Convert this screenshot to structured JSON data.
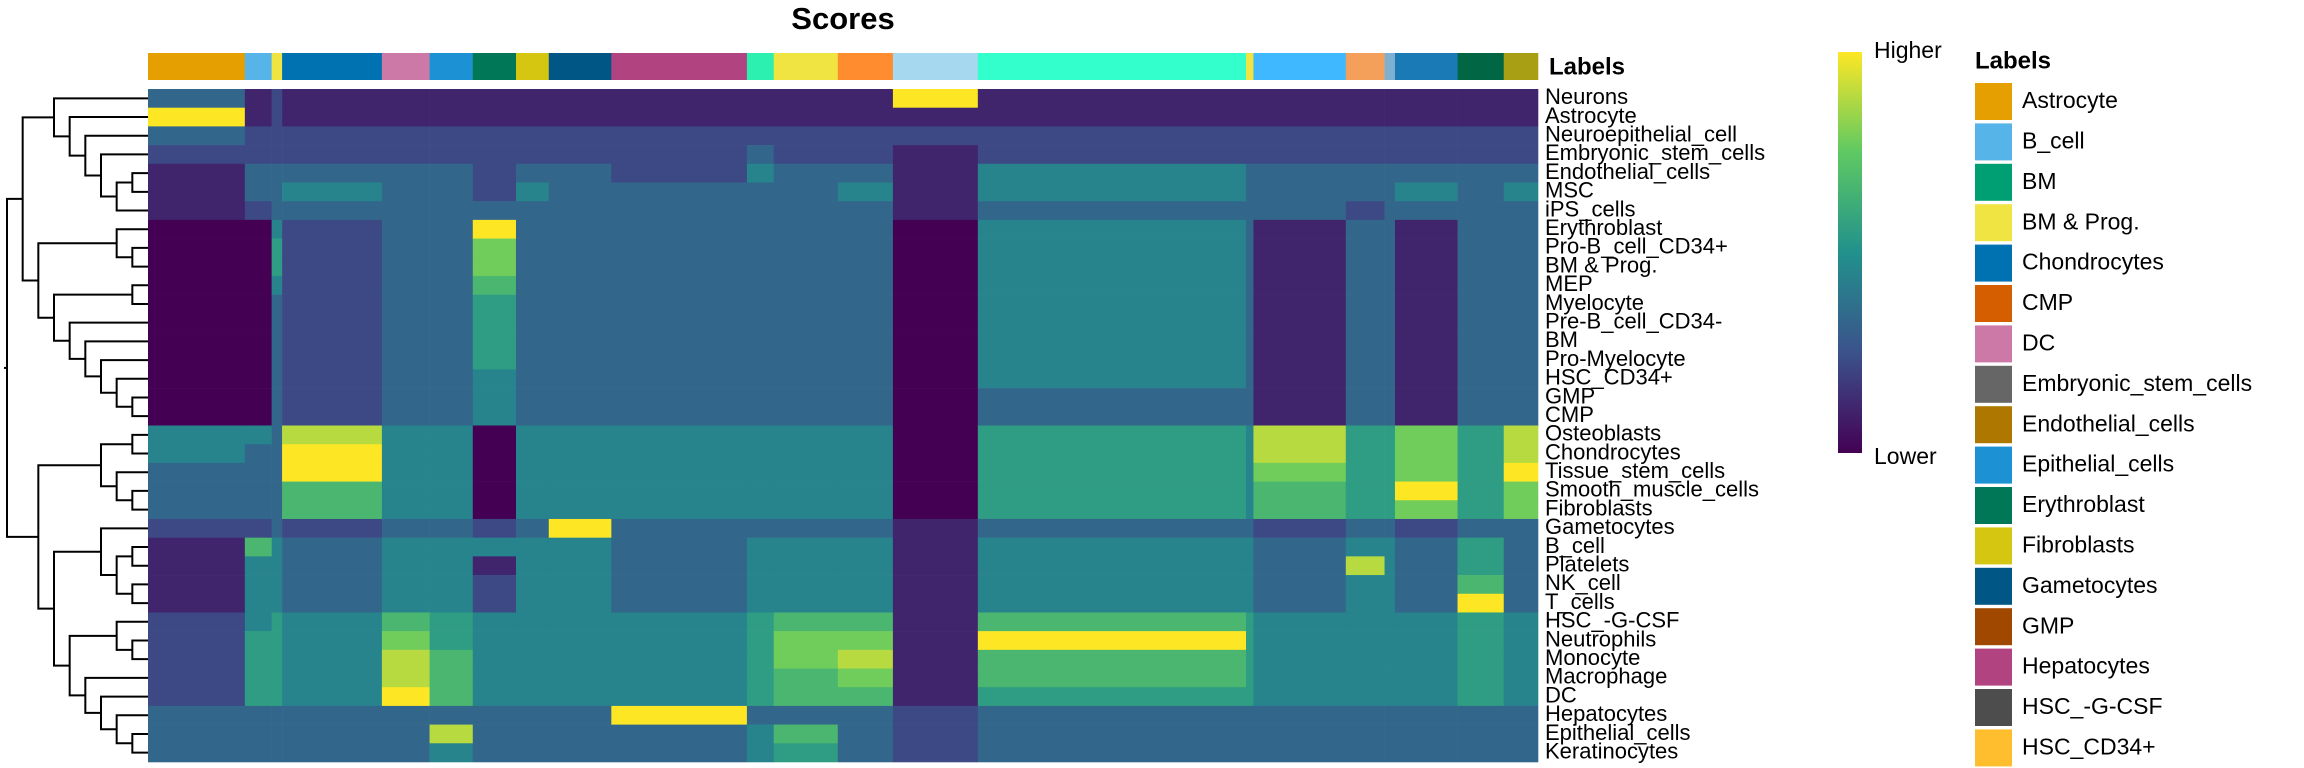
{
  "chart_data": {
    "type": "heatmap",
    "title": "Scores",
    "annotation_title": "Labels",
    "colorbar_labels": {
      "high": "Higher",
      "low": "Lower"
    },
    "zlim": [
      0,
      9
    ],
    "rows": [
      "Neurons",
      "Astrocyte",
      "Neuroepithelial_cell",
      "Embryonic_stem_cells",
      "Endothelial_cells",
      "MSC",
      "iPS_cells",
      "Erythroblast",
      "Pro-B_cell_CD34+",
      "BM & Prog.",
      "MEP",
      "Myelocyte",
      "Pre-B_cell_CD34-",
      "BM",
      "Pro-Myelocyte",
      "HSC_CD34+",
      "GMP",
      "CMP",
      "Osteoblasts",
      "Chondrocytes",
      "Tissue_stem_cells",
      "Smooth_muscle_cells",
      "Fibroblasts",
      "Gametocytes",
      "B_cell",
      "Platelets",
      "NK_cell",
      "T_cells",
      "HSC_-G-CSF",
      "Neutrophils",
      "Monocyte",
      "Macrophage",
      "DC",
      "Hepatocytes",
      "Epithelial_cells",
      "Keratinocytes"
    ],
    "column_groups": [
      {
        "color": "#E69F00",
        "cells": 65
      },
      {
        "color": "#56B4E9",
        "cells": 18
      },
      {
        "color": "#F0E442",
        "cells": 7
      },
      {
        "color": "#0072B2",
        "cells": 67
      },
      {
        "color": "#CC79A7",
        "cells": 32
      },
      {
        "color": "#1C91D4",
        "cells": 29
      },
      {
        "color": "#007756",
        "cells": 29
      },
      {
        "color": "#D5C711",
        "cells": 22
      },
      {
        "color": "#005685",
        "cells": 42
      },
      {
        "color": "#B14380",
        "cells": 91
      },
      {
        "color": "#2BF0B0",
        "cells": 18
      },
      {
        "color": "#F0E442",
        "cells": 43
      },
      {
        "color": "#FF8C2E",
        "cells": 37
      },
      {
        "color": "#A6D8F0",
        "cells": 57
      },
      {
        "color": "#33FFCC",
        "cells": 180
      },
      {
        "color": "#F0E442",
        "cells": 5
      },
      {
        "color": "#40B8FF",
        "cells": 62
      },
      {
        "color": "#F5A05A",
        "cells": 26
      },
      {
        "color": "#7FB0D0",
        "cells": 7
      },
      {
        "color": "#1A7AB5",
        "cells": 42
      },
      {
        "color": "#006644",
        "cells": 31
      },
      {
        "color": "#A89F14",
        "cells": 23
      }
    ],
    "matrix": [
      [
        3,
        1,
        2,
        1,
        1,
        1,
        1,
        1,
        1,
        1,
        1,
        1,
        1,
        9,
        1,
        1,
        1,
        1,
        1,
        1,
        1,
        1
      ],
      [
        9,
        1,
        2,
        1,
        1,
        1,
        1,
        1,
        1,
        1,
        1,
        1,
        1,
        1,
        1,
        1,
        1,
        1,
        1,
        1,
        1,
        1
      ],
      [
        3,
        2,
        2,
        2,
        2,
        2,
        2,
        2,
        2,
        2,
        2,
        2,
        2,
        2,
        2,
        2,
        2,
        2,
        2,
        2,
        2,
        2
      ],
      [
        2,
        2,
        2,
        2,
        2,
        2,
        2,
        2,
        2,
        2,
        3,
        2,
        2,
        1,
        2,
        2,
        2,
        2,
        2,
        2,
        2,
        2
      ],
      [
        1,
        3,
        3,
        3,
        3,
        3,
        2,
        3,
        3,
        2,
        4,
        3,
        3,
        1,
        4,
        3,
        3,
        3,
        3,
        3,
        3,
        3
      ],
      [
        1,
        3,
        3,
        4,
        3,
        3,
        2,
        4,
        3,
        3,
        3,
        3,
        4,
        1,
        4,
        3,
        3,
        3,
        3,
        4,
        3,
        4
      ],
      [
        1,
        2,
        3,
        3,
        3,
        3,
        3,
        3,
        3,
        3,
        3,
        3,
        3,
        1,
        3,
        3,
        3,
        2,
        3,
        3,
        3,
        3
      ],
      [
        0,
        0,
        4,
        2,
        3,
        3,
        9,
        3,
        3,
        3,
        3,
        3,
        3,
        0,
        4,
        3,
        1,
        3,
        3,
        1,
        3,
        3
      ],
      [
        0,
        0,
        5,
        2,
        3,
        3,
        7,
        3,
        3,
        3,
        3,
        3,
        3,
        0,
        4,
        3,
        1,
        3,
        3,
        1,
        3,
        3
      ],
      [
        0,
        0,
        5,
        2,
        3,
        3,
        7,
        3,
        3,
        3,
        3,
        3,
        3,
        0,
        4,
        3,
        1,
        3,
        3,
        1,
        3,
        3
      ],
      [
        0,
        0,
        4,
        2,
        3,
        3,
        6,
        3,
        3,
        3,
        3,
        3,
        3,
        0,
        4,
        3,
        1,
        3,
        3,
        1,
        3,
        3
      ],
      [
        0,
        0,
        3,
        2,
        3,
        3,
        5,
        3,
        3,
        3,
        3,
        3,
        3,
        0,
        4,
        3,
        1,
        3,
        3,
        1,
        3,
        3
      ],
      [
        0,
        0,
        3,
        2,
        3,
        3,
        5,
        3,
        3,
        3,
        3,
        3,
        3,
        0,
        4,
        3,
        1,
        3,
        3,
        1,
        3,
        3
      ],
      [
        0,
        0,
        3,
        2,
        3,
        3,
        5,
        3,
        3,
        3,
        3,
        3,
        3,
        0,
        4,
        3,
        1,
        3,
        3,
        1,
        3,
        3
      ],
      [
        0,
        0,
        3,
        2,
        3,
        3,
        5,
        3,
        3,
        3,
        3,
        3,
        3,
        0,
        4,
        3,
        1,
        3,
        3,
        1,
        3,
        3
      ],
      [
        0,
        0,
        3,
        2,
        3,
        3,
        4,
        3,
        3,
        3,
        3,
        3,
        3,
        0,
        4,
        3,
        1,
        3,
        3,
        1,
        3,
        3
      ],
      [
        0,
        0,
        3,
        2,
        3,
        3,
        4,
        3,
        3,
        3,
        3,
        3,
        3,
        0,
        3,
        3,
        1,
        3,
        3,
        1,
        3,
        3
      ],
      [
        0,
        0,
        3,
        2,
        3,
        3,
        4,
        3,
        3,
        3,
        3,
        3,
        3,
        0,
        3,
        3,
        1,
        3,
        3,
        1,
        3,
        3
      ],
      [
        4,
        4,
        3,
        8,
        4,
        4,
        0,
        4,
        4,
        4,
        4,
        4,
        4,
        0,
        5,
        4,
        8,
        5,
        5,
        7,
        5,
        8
      ],
      [
        4,
        3,
        3,
        9,
        4,
        4,
        0,
        4,
        4,
        4,
        4,
        4,
        4,
        0,
        5,
        4,
        8,
        5,
        5,
        7,
        5,
        8
      ],
      [
        3,
        3,
        3,
        9,
        4,
        4,
        0,
        4,
        4,
        4,
        4,
        4,
        4,
        0,
        5,
        4,
        7,
        5,
        5,
        7,
        5,
        9
      ],
      [
        3,
        3,
        3,
        6,
        4,
        4,
        0,
        4,
        4,
        4,
        4,
        4,
        4,
        0,
        5,
        4,
        6,
        5,
        5,
        9,
        5,
        7
      ],
      [
        3,
        3,
        3,
        6,
        4,
        4,
        0,
        4,
        4,
        4,
        4,
        4,
        4,
        0,
        5,
        4,
        6,
        5,
        5,
        7,
        5,
        7
      ],
      [
        2,
        2,
        3,
        2,
        3,
        3,
        2,
        3,
        9,
        3,
        3,
        3,
        3,
        1,
        3,
        3,
        2,
        3,
        3,
        2,
        3,
        3
      ],
      [
        1,
        6,
        4,
        3,
        4,
        4,
        4,
        4,
        4,
        3,
        4,
        4,
        4,
        1,
        4,
        4,
        3,
        4,
        4,
        3,
        5,
        3
      ],
      [
        1,
        4,
        4,
        3,
        4,
        4,
        1,
        4,
        4,
        3,
        4,
        4,
        4,
        1,
        4,
        4,
        3,
        8,
        4,
        3,
        5,
        3
      ],
      [
        1,
        4,
        4,
        3,
        4,
        4,
        2,
        4,
        4,
        3,
        4,
        4,
        4,
        1,
        4,
        4,
        3,
        4,
        4,
        3,
        6,
        3
      ],
      [
        1,
        4,
        4,
        3,
        4,
        4,
        2,
        4,
        4,
        3,
        4,
        4,
        4,
        1,
        4,
        4,
        3,
        4,
        4,
        3,
        9,
        3
      ],
      [
        2,
        4,
        5,
        4,
        6,
        5,
        4,
        4,
        4,
        4,
        5,
        6,
        6,
        1,
        6,
        5,
        4,
        4,
        4,
        4,
        5,
        4
      ],
      [
        2,
        5,
        5,
        4,
        7,
        5,
        4,
        4,
        4,
        4,
        5,
        7,
        7,
        1,
        9,
        5,
        4,
        4,
        4,
        4,
        5,
        4
      ],
      [
        2,
        5,
        5,
        4,
        8,
        6,
        4,
        4,
        4,
        4,
        5,
        7,
        8,
        1,
        6,
        5,
        4,
        4,
        4,
        4,
        5,
        4
      ],
      [
        2,
        5,
        5,
        4,
        8,
        6,
        4,
        4,
        4,
        4,
        5,
        6,
        7,
        1,
        6,
        5,
        4,
        4,
        4,
        4,
        5,
        4
      ],
      [
        2,
        5,
        5,
        4,
        9,
        6,
        4,
        4,
        4,
        4,
        5,
        6,
        6,
        1,
        5,
        5,
        4,
        4,
        4,
        4,
        5,
        4
      ],
      [
        3,
        3,
        3,
        3,
        3,
        3,
        3,
        3,
        3,
        9,
        3,
        3,
        3,
        2,
        3,
        3,
        3,
        3,
        3,
        3,
        3,
        3
      ],
      [
        3,
        3,
        3,
        3,
        3,
        8,
        3,
        3,
        3,
        3,
        4,
        6,
        3,
        2,
        3,
        3,
        3,
        3,
        3,
        3,
        3,
        3
      ],
      [
        3,
        3,
        3,
        3,
        3,
        4,
        3,
        3,
        3,
        3,
        4,
        5,
        3,
        2,
        3,
        3,
        3,
        3,
        3,
        3,
        3,
        3
      ]
    ],
    "legend": {
      "title": "Labels",
      "items": [
        {
          "name": "Astrocyte",
          "color": "#E69F00"
        },
        {
          "name": "B_cell",
          "color": "#56B4E9"
        },
        {
          "name": "BM",
          "color": "#009E73"
        },
        {
          "name": "BM & Prog.",
          "color": "#F0E442"
        },
        {
          "name": "Chondrocytes",
          "color": "#0072B2"
        },
        {
          "name": "CMP",
          "color": "#D55E00"
        },
        {
          "name": "DC",
          "color": "#CC79A7"
        },
        {
          "name": "Embryonic_stem_cells",
          "color": "#666666"
        },
        {
          "name": "Endothelial_cells",
          "color": "#AD7700"
        },
        {
          "name": "Epithelial_cells",
          "color": "#1C91D4"
        },
        {
          "name": "Erythroblast",
          "color": "#007756"
        },
        {
          "name": "Fibroblasts",
          "color": "#D5C711"
        },
        {
          "name": "Gametocytes",
          "color": "#005685"
        },
        {
          "name": "GMP",
          "color": "#A04700"
        },
        {
          "name": "Hepatocytes",
          "color": "#B14380"
        },
        {
          "name": "HSC_-G-CSF",
          "color": "#4D4D4D"
        },
        {
          "name": "HSC_CD34+",
          "color": "#FFBE2D"
        }
      ]
    }
  }
}
